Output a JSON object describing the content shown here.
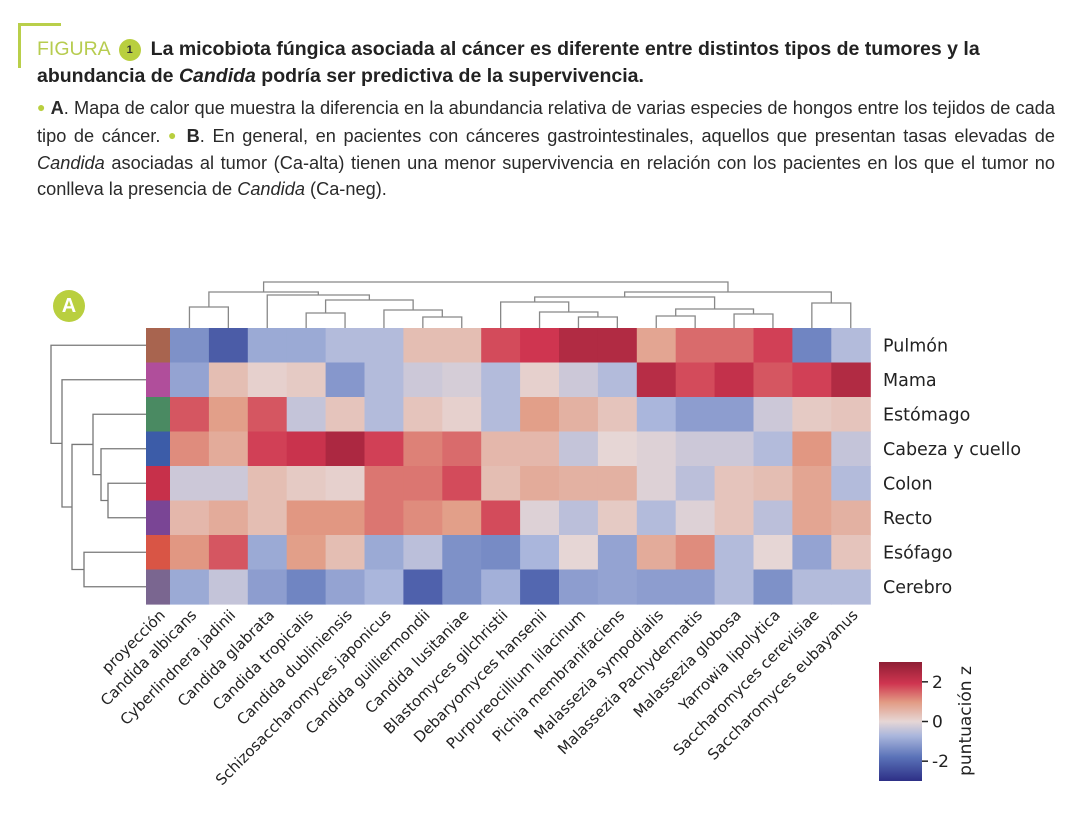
{
  "figure": {
    "label": "FIGURA",
    "number": "1",
    "title_part1": "La micobiota fúngica asociada al cáncer es diferente entre distintos tipos de tumores y la abundancia de ",
    "title_italic": "Candida",
    "title_part2": " podría ser predictiva de la supervivencia.",
    "accent_color": "#b9cf3f"
  },
  "caption": {
    "a_label": "A",
    "a_text": ". Mapa de calor que muestra la diferencia en la abundancia relativa de varias especies de hongos entre los tejidos de cada tipo de cáncer.",
    "b_label": "B",
    "b_text1": ". En general, en pacientes con cánceres gastrointestinales, aquellos que presentan tasas elevadas de ",
    "b_italic1": "Candida",
    "b_text2": " asociadas al tumor (Ca-alta) tienen una menor supervivencia en relación con los pacientes en los que el tumor no conlleva la presencia de ",
    "b_italic2": "Candida",
    "b_text3": " (Ca-neg)."
  },
  "panel_label": "A",
  "chart_data": {
    "type": "heatmap",
    "title": "",
    "projection_label": "proyección",
    "rows": [
      "Pulmón",
      "Mama",
      "Estómago",
      "Cabeza y cuello",
      "Colon",
      "Recto",
      "Esófago",
      "Cerebro"
    ],
    "row_projection_colors": [
      "#a8644f",
      "#b04e9b",
      "#4a8a62",
      "#3c5ca8",
      "#c7304a",
      "#7a4595",
      "#d95545",
      "#7a6690"
    ],
    "columns": [
      "Candida albicans",
      "Cyberlindnera jadinii",
      "Candida glabrata",
      "Candida tropicalis",
      "Candida dubliniensis",
      "Schizosaccharomyces japonicus",
      "Candida guilliermondii",
      "Candida lusitaniae",
      "Blastomyces gilchristii",
      "Debaryomyces hansenii",
      "Purpureocillium lilacinum",
      "Pichia membranifaciens",
      "Malassezia sympodialis",
      "Malassezia Pachydermatis",
      "Malassezia globosa",
      "Yarrowia lipolytica",
      "Saccharomyces cerevisiae",
      "Saccharomyces eubayanus"
    ],
    "values": [
      [
        -1.3,
        -2.2,
        -0.9,
        -0.9,
        -0.6,
        -0.6,
        0.4,
        0.4,
        1.7,
        1.9,
        2.4,
        2.4,
        0.8,
        1.4,
        1.4,
        1.8,
        -1.5,
        -0.6
      ],
      [
        -1.0,
        0.4,
        0.1,
        0.2,
        -1.2,
        -0.6,
        -0.3,
        -0.2,
        -0.6,
        0.1,
        -0.3,
        -0.6,
        2.3,
        1.7,
        2.1,
        1.6,
        1.8,
        2.4
      ],
      [
        1.6,
        0.9,
        1.6,
        -0.4,
        0.3,
        -0.6,
        0.3,
        0.1,
        -0.6,
        0.9,
        0.6,
        0.3,
        -0.7,
        -1.1,
        -1.1,
        -0.3,
        0.2,
        0.3
      ],
      [
        1.1,
        0.7,
        1.8,
        2.0,
        2.5,
        1.8,
        1.2,
        1.4,
        0.5,
        0.5,
        -0.4,
        0.0,
        -0.1,
        -0.3,
        -0.3,
        -0.6,
        1.0,
        -0.4
      ],
      [
        -0.3,
        -0.3,
        0.4,
        0.2,
        0.1,
        1.3,
        1.3,
        1.7,
        0.4,
        0.7,
        0.6,
        0.6,
        -0.1,
        -0.5,
        0.3,
        0.4,
        0.8,
        -0.6
      ],
      [
        0.5,
        0.7,
        0.4,
        1.0,
        1.0,
        1.3,
        1.1,
        0.9,
        1.7,
        -0.1,
        -0.5,
        0.2,
        -0.6,
        -0.1,
        0.3,
        -0.5,
        0.8,
        0.6
      ],
      [
        1.0,
        1.6,
        -0.9,
        0.9,
        0.4,
        -0.9,
        -0.5,
        -1.3,
        -1.4,
        -0.7,
        0.0,
        -1.0,
        0.7,
        1.1,
        -0.6,
        0.0,
        -1.0,
        0.3
      ],
      [
        -0.9,
        -0.4,
        -1.1,
        -1.5,
        -1.0,
        -0.7,
        -2.1,
        -1.3,
        -0.8,
        -2.0,
        -1.1,
        -1.0,
        -1.1,
        -1.1,
        -0.6,
        -1.3,
        -0.6,
        -0.6
      ]
    ],
    "colorbar": {
      "label": "puntuación z",
      "ticks": [
        "2",
        "0",
        "-2"
      ],
      "tick_values": [
        2,
        0,
        -2
      ],
      "range": [
        -3,
        3
      ],
      "low_color": "#3b3f99",
      "mid_color": "#e8d6d3",
      "high_color": "#b51e3c"
    },
    "row_dendrogram": "Pulmón | (Mama | ((Estómago | (Cabeza y cuello | (Colon | Recto))) | (Esófago | Cerebro)))",
    "column_dendrogram": "((C. albicans, C. jadinii), (C. glabrata, (C. tropicalis, C. dubliniensis), (S. japonicus, (C. guilliermondii, C. lusitaniae)))) | (((B. gilchristii, (D. hansenii, (P. lilacinum, P. membranifaciens))), ((M. sympodialis, M. pachydermatis), (M. globosa, Y. lipolytica))), (S. cerevisiae, S. eubayanus))"
  }
}
